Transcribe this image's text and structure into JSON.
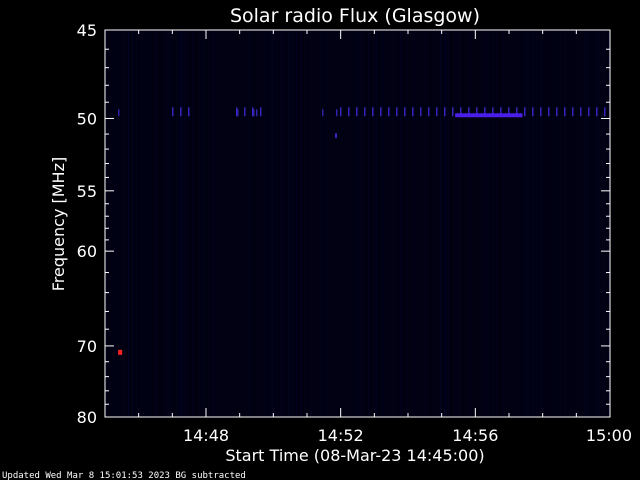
{
  "chart_data": {
    "type": "heatmap",
    "title": "Solar radio Flux (Glasgow)",
    "xlabel": "Start Time (08-Mar-23 14:45:00)",
    "ylabel": "Frequency [MHz]",
    "x_ticks": [
      "14:48",
      "14:52",
      "14:56",
      "15:00"
    ],
    "x_tick_minutes": [
      3,
      7,
      11,
      15
    ],
    "xlim_minutes": [
      0,
      15
    ],
    "y_ticks": [
      45,
      50,
      55,
      60,
      70,
      80
    ],
    "ylim": [
      45,
      80
    ],
    "y_scale": "reciprocal",
    "features": [
      {
        "type": "band",
        "freq_mhz": 49.8,
        "minute_start": 10.4,
        "minute_end": 12.4,
        "color": "#4a1ee8"
      },
      {
        "type": "spot",
        "freq_mhz": 70.8,
        "minute": 0.45,
        "color": "#ff2020"
      }
    ],
    "colors": {
      "background": "#000010",
      "signal": "#3a2ad0",
      "burst": "#ff2020"
    },
    "footer": "Updated Wed Mar  8 15:01:53 2023   BG subtracted"
  }
}
